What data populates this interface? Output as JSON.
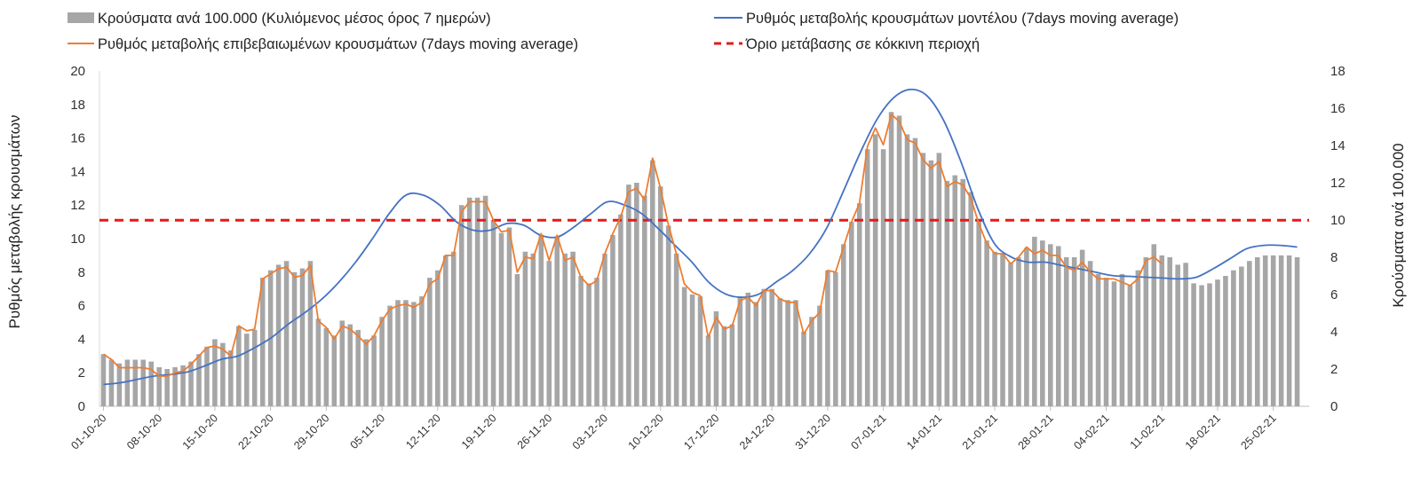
{
  "chart_data": {
    "type": "bar+line",
    "title": "",
    "ylabel_left": "Ρυθμός μεταβολής κρουσμάτων",
    "ylabel_right": "Κρούσματα ανά 100.000",
    "ylim_left": [
      0,
      20
    ],
    "ylim_right": [
      0,
      18
    ],
    "yticks_left": [
      "0",
      "2",
      "4",
      "6",
      "8",
      "10",
      "12",
      "14",
      "16",
      "18",
      "20"
    ],
    "yticks_right": [
      "0",
      "2",
      "4",
      "6",
      "8",
      "10",
      "12",
      "14",
      "16",
      "18"
    ],
    "xtick_labels": [
      "01-10-20",
      "08-10-20",
      "15-10-20",
      "22-10-20",
      "29-10-20",
      "05-11-20",
      "12-11-20",
      "19-11-20",
      "26-11-20",
      "03-12-20",
      "10-12-20",
      "17-12-20",
      "24-12-20",
      "31-12-20",
      "07-01-21",
      "14-01-21",
      "21-01-21",
      "28-01-21",
      "04-02-21",
      "11-02-21",
      "18-02-21",
      "25-02-21"
    ],
    "legend": {
      "bars": "Κρούσματα ανά 100.000 (Κυλιόμενος μέσος όρος 7 ημερών)",
      "model": "Ρυθμός μεταβολής κρουσμάτων μοντέλου (7days moving average)",
      "confirmed": "Ρυθμός μεταβολής επιβεβαιωμένων κρουσμάτων (7days moving average)",
      "threshold": "Όριο μετάβασης σε κόκκινη περιοχή"
    },
    "colors": {
      "bars": "#a6a6a6",
      "model": "#4472c4",
      "confirmed": "#ed7d31",
      "threshold": "#e31a1c"
    },
    "threshold_left": 11.1,
    "series": [
      {
        "name": "Κρούσματα ανά 100.000 (Κυλιόμενος μέσος όρος 7 ημερών)",
        "axis": "right",
        "kind": "bar",
        "values": [
          2.8,
          2.5,
          2.3,
          2.5,
          2.5,
          2.5,
          2.4,
          2.1,
          2.0,
          2.1,
          2.2,
          2.4,
          2.8,
          3.2,
          3.6,
          3.4,
          3.0,
          4.3,
          3.9,
          4.1,
          6.9,
          7.3,
          7.6,
          7.8,
          7.2,
          7.4,
          7.8,
          4.7,
          4.2,
          3.8,
          4.6,
          4.4,
          4.1,
          3.6,
          3.8,
          4.8,
          5.4,
          5.7,
          5.7,
          5.6,
          5.9,
          6.9,
          7.3,
          8.1,
          8.3,
          10.8,
          11.2,
          11.2,
          11.3,
          10.0,
          9.3,
          9.6,
          7.1,
          8.3,
          8.2,
          9.2,
          7.8,
          9.1,
          8.2,
          8.3,
          7.0,
          6.6,
          6.9,
          8.2,
          9.2,
          10.3,
          11.9,
          12.0,
          11.3,
          13.2,
          11.8,
          9.7,
          8.2,
          6.4,
          6.0,
          5.9,
          3.8,
          5.1,
          4.3,
          4.4,
          5.9,
          6.1,
          5.6,
          6.3,
          6.3,
          5.8,
          5.7,
          5.7,
          4.0,
          4.8,
          5.4,
          7.3,
          7.2,
          8.7,
          9.9,
          10.9,
          13.8,
          14.6,
          13.8,
          15.8,
          15.6,
          14.6,
          14.4,
          13.6,
          13.2,
          13.6,
          12.1,
          12.4,
          12.2,
          11.5,
          10.0,
          8.9,
          8.3,
          8.2,
          7.7,
          8.0,
          8.5,
          9.1,
          8.9,
          8.7,
          8.6,
          8.0,
          8.0,
          8.4,
          7.8,
          7.1,
          6.9,
          6.7,
          7.1,
          6.5,
          7.3,
          8.0,
          8.7,
          8.1,
          8.0,
          7.6,
          7.7,
          6.6,
          6.5,
          6.6,
          6.8,
          7.0,
          7.3,
          7.5,
          7.8,
          8.0,
          8.1,
          8.1,
          8.1,
          8.1,
          8.0
        ]
      },
      {
        "name": "Ρυθμός μεταβολής κρουσμάτων μοντέλου (7days moving average)",
        "axis": "left",
        "kind": "line",
        "values": [
          1.3,
          1.4,
          1.6,
          1.8,
          1.9,
          2.05,
          2.4,
          2.8,
          3.0,
          3.5,
          4.1,
          4.9,
          5.6,
          6.4,
          7.4,
          8.6,
          10.0,
          11.5,
          12.6,
          12.6,
          12.0,
          11.0,
          10.5,
          10.5,
          10.9,
          10.8,
          10.2,
          10.1,
          10.7,
          11.5,
          12.2,
          12.0,
          11.5,
          10.6,
          9.6,
          8.6,
          7.4,
          6.7,
          6.5,
          6.7,
          7.4,
          8.1,
          9.1,
          10.6,
          12.8,
          15.1,
          17.1,
          18.4,
          18.9,
          18.5,
          17.0,
          14.6,
          11.8,
          9.7,
          8.9,
          8.6,
          8.6,
          8.4,
          8.2,
          8.0,
          7.8,
          7.75,
          7.7,
          7.65,
          7.6,
          7.7,
          8.2,
          8.8,
          9.4,
          9.6,
          9.6,
          9.5
        ],
        "x_start_day": 0,
        "x_end_day": 150
      },
      {
        "name": "Ρυθμός μεταβολής επιβεβαιωμένων κρουσμάτων (7days moving average)",
        "axis": "left",
        "kind": "line",
        "values": [
          3.1,
          2.8,
          2.3,
          2.3,
          2.3,
          2.3,
          2.2,
          1.8,
          1.8,
          2.0,
          2.1,
          2.5,
          3.0,
          3.5,
          3.6,
          3.4,
          3.0,
          4.8,
          4.5,
          4.6,
          7.6,
          7.9,
          8.2,
          8.3,
          7.7,
          7.8,
          8.4,
          5.1,
          4.7,
          4.0,
          4.8,
          4.6,
          4.2,
          3.7,
          4.2,
          5.1,
          5.8,
          6.0,
          6.1,
          5.9,
          6.2,
          7.3,
          7.6,
          9.0,
          9.0,
          11.6,
          12.2,
          12.2,
          12.2,
          11.1,
          10.4,
          10.5,
          8.0,
          8.9,
          8.8,
          10.3,
          8.7,
          10.2,
          8.7,
          8.9,
          7.7,
          7.2,
          7.5,
          9.1,
          10.3,
          11.3,
          12.8,
          13.0,
          12.3,
          14.8,
          13.0,
          10.8,
          9.1,
          7.3,
          6.8,
          6.6,
          4.1,
          5.3,
          4.6,
          4.8,
          6.3,
          6.5,
          6.0,
          6.9,
          6.9,
          6.4,
          6.2,
          6.2,
          4.3,
          5.1,
          5.6,
          8.1,
          8.0,
          9.5,
          11.0,
          12.1,
          15.5,
          16.6,
          15.6,
          17.4,
          17.0,
          15.9,
          15.7,
          14.7,
          14.2,
          14.6,
          13.1,
          13.4,
          13.2,
          12.4,
          10.9,
          9.7,
          9.1,
          9.1,
          8.5,
          8.9,
          9.5,
          9.1,
          9.3,
          9.0,
          9.0,
          8.3,
          8.1,
          8.6,
          8.0,
          7.6,
          7.6,
          7.6,
          7.4,
          7.2,
          7.6,
          8.7,
          8.9,
          8.5
        ],
        "x_start_day": 0
      }
    ]
  }
}
